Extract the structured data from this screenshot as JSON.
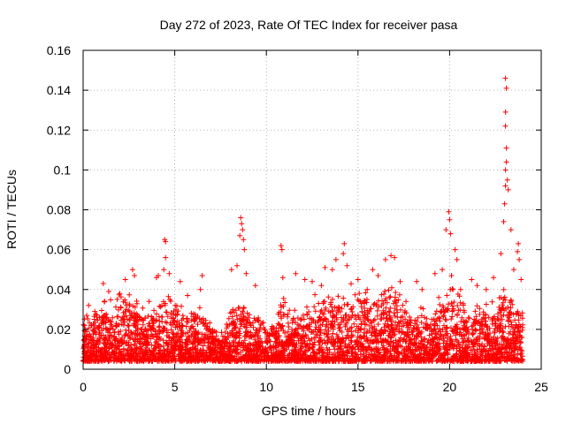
{
  "chart_data": {
    "type": "scatter",
    "title": "Day 272 of 2023, Rate Of TEC Index for receiver pasa",
    "xlabel": "GPS time / hours",
    "ylabel": "ROTI / TECUs",
    "xlim": [
      0,
      25
    ],
    "ylim": [
      0,
      0.16
    ],
    "xticks": [
      0,
      5,
      10,
      15,
      20,
      25
    ],
    "yticks": [
      0,
      0.02,
      0.04,
      0.06,
      0.08,
      0.1,
      0.12,
      0.14,
      0.16
    ],
    "grid": true,
    "marker": "+",
    "series": [
      {
        "name": "ROTI",
        "color": "#ff0000",
        "baseline_envelope": {
          "x": [
            0,
            0.5,
            1,
            1.5,
            2,
            2.5,
            3,
            3.5,
            4,
            4.5,
            5,
            5.5,
            6,
            6.5,
            7,
            7.5,
            8,
            8.5,
            9,
            9.5,
            10,
            10.5,
            11,
            11.5,
            12,
            12.5,
            13,
            13.5,
            14,
            14.5,
            15,
            15.5,
            16,
            16.5,
            17,
            17.5,
            18,
            18.5,
            19,
            19.5,
            20,
            20.5,
            21,
            21.5,
            22,
            22.5,
            23,
            23.5,
            24
          ],
          "upper": [
            0.028,
            0.03,
            0.04,
            0.036,
            0.04,
            0.045,
            0.035,
            0.03,
            0.032,
            0.045,
            0.042,
            0.03,
            0.03,
            0.035,
            0.022,
            0.02,
            0.03,
            0.045,
            0.03,
            0.03,
            0.025,
            0.028,
            0.04,
            0.03,
            0.035,
            0.04,
            0.038,
            0.04,
            0.04,
            0.045,
            0.045,
            0.038,
            0.042,
            0.045,
            0.045,
            0.04,
            0.03,
            0.035,
            0.03,
            0.04,
            0.045,
            0.045,
            0.03,
            0.035,
            0.035,
            0.04,
            0.045,
            0.04,
            0.03
          ],
          "lower": 0.004
        },
        "highlights": [
          {
            "x": 0.2,
            "y": 0.027
          },
          {
            "x": 0.3,
            "y": 0.032
          },
          {
            "x": 1.1,
            "y": 0.043
          },
          {
            "x": 1.4,
            "y": 0.039
          },
          {
            "x": 2.0,
            "y": 0.038
          },
          {
            "x": 2.3,
            "y": 0.045
          },
          {
            "x": 2.7,
            "y": 0.05
          },
          {
            "x": 2.8,
            "y": 0.047
          },
          {
            "x": 3.6,
            "y": 0.034
          },
          {
            "x": 4.0,
            "y": 0.046
          },
          {
            "x": 4.1,
            "y": 0.047
          },
          {
            "x": 4.45,
            "y": 0.065
          },
          {
            "x": 4.5,
            "y": 0.064
          },
          {
            "x": 4.5,
            "y": 0.056
          },
          {
            "x": 4.4,
            "y": 0.05
          },
          {
            "x": 4.7,
            "y": 0.048
          },
          {
            "x": 5.3,
            "y": 0.044
          },
          {
            "x": 5.7,
            "y": 0.037
          },
          {
            "x": 6.5,
            "y": 0.047
          },
          {
            "x": 6.4,
            "y": 0.04
          },
          {
            "x": 8.1,
            "y": 0.05
          },
          {
            "x": 8.4,
            "y": 0.052
          },
          {
            "x": 8.55,
            "y": 0.067
          },
          {
            "x": 8.6,
            "y": 0.076
          },
          {
            "x": 8.65,
            "y": 0.073
          },
          {
            "x": 8.7,
            "y": 0.07
          },
          {
            "x": 8.75,
            "y": 0.065
          },
          {
            "x": 8.8,
            "y": 0.06
          },
          {
            "x": 8.9,
            "y": 0.048
          },
          {
            "x": 9.4,
            "y": 0.042
          },
          {
            "x": 10.8,
            "y": 0.062
          },
          {
            "x": 10.85,
            "y": 0.06
          },
          {
            "x": 10.9,
            "y": 0.046
          },
          {
            "x": 11.6,
            "y": 0.048
          },
          {
            "x": 12.1,
            "y": 0.045
          },
          {
            "x": 12.5,
            "y": 0.044
          },
          {
            "x": 13.0,
            "y": 0.042
          },
          {
            "x": 13.2,
            "y": 0.051
          },
          {
            "x": 13.6,
            "y": 0.05
          },
          {
            "x": 13.8,
            "y": 0.055
          },
          {
            "x": 14.2,
            "y": 0.058
          },
          {
            "x": 14.25,
            "y": 0.063
          },
          {
            "x": 14.4,
            "y": 0.052
          },
          {
            "x": 15.0,
            "y": 0.045
          },
          {
            "x": 15.5,
            "y": 0.04
          },
          {
            "x": 15.8,
            "y": 0.05
          },
          {
            "x": 16.1,
            "y": 0.047
          },
          {
            "x": 16.5,
            "y": 0.055
          },
          {
            "x": 16.8,
            "y": 0.057
          },
          {
            "x": 17.0,
            "y": 0.056
          },
          {
            "x": 17.3,
            "y": 0.044
          },
          {
            "x": 18.2,
            "y": 0.044
          },
          {
            "x": 18.5,
            "y": 0.04
          },
          {
            "x": 19.2,
            "y": 0.048
          },
          {
            "x": 19.6,
            "y": 0.05
          },
          {
            "x": 19.8,
            "y": 0.07
          },
          {
            "x": 19.95,
            "y": 0.079
          },
          {
            "x": 20.0,
            "y": 0.075
          },
          {
            "x": 20.05,
            "y": 0.068
          },
          {
            "x": 20.1,
            "y": 0.047
          },
          {
            "x": 20.3,
            "y": 0.06
          },
          {
            "x": 20.4,
            "y": 0.055
          },
          {
            "x": 20.6,
            "y": 0.04
          },
          {
            "x": 21.2,
            "y": 0.045
          },
          {
            "x": 21.5,
            "y": 0.042
          },
          {
            "x": 22.0,
            "y": 0.04
          },
          {
            "x": 22.4,
            "y": 0.046
          },
          {
            "x": 22.8,
            "y": 0.058
          },
          {
            "x": 22.95,
            "y": 0.074
          },
          {
            "x": 23.0,
            "y": 0.083
          },
          {
            "x": 23.05,
            "y": 0.092
          },
          {
            "x": 23.05,
            "y": 0.1
          },
          {
            "x": 23.1,
            "y": 0.104
          },
          {
            "x": 23.1,
            "y": 0.111
          },
          {
            "x": 23.05,
            "y": 0.122
          },
          {
            "x": 23.05,
            "y": 0.129
          },
          {
            "x": 23.1,
            "y": 0.141
          },
          {
            "x": 23.05,
            "y": 0.146
          },
          {
            "x": 23.15,
            "y": 0.095
          },
          {
            "x": 23.2,
            "y": 0.09
          },
          {
            "x": 23.35,
            "y": 0.07
          },
          {
            "x": 23.5,
            "y": 0.05
          },
          {
            "x": 23.7,
            "y": 0.059
          },
          {
            "x": 23.75,
            "y": 0.063
          },
          {
            "x": 23.8,
            "y": 0.055
          },
          {
            "x": 23.9,
            "y": 0.045
          }
        ]
      }
    ]
  }
}
